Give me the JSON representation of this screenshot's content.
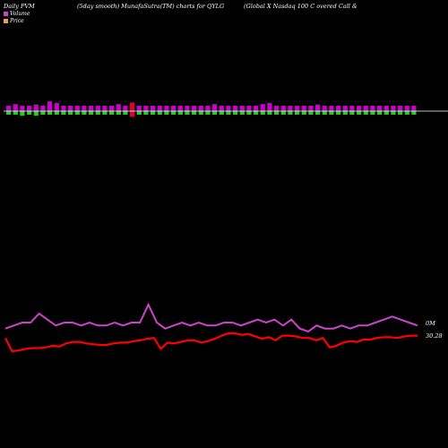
{
  "header": {
    "left": "Daily PVM",
    "middle": "(5day smooth) MunafaSutra(TM) charts for QYLG",
    "right": "(Global X  Nasdaq 100  C                  overed Call &"
  },
  "legend": [
    {
      "label": "Volume",
      "color": "#cc44cc"
    },
    {
      "label": "Price",
      "color": "#e8a060"
    }
  ],
  "labels": {
    "volume_value": "0M",
    "price_value": "30.28"
  },
  "colors": {
    "volume_up": "#cc00cc",
    "volume_down": "#22cc22",
    "volume_red": "#dd0033",
    "volume_line": "#cc44cc",
    "price_line": "#ff0000",
    "baseline": "#ffffff"
  },
  "chart_data": {
    "type": "line",
    "series": [
      {
        "name": "Volume",
        "values": [
          4,
          5,
          6,
          6,
          9,
          7,
          5,
          6,
          6,
          5,
          6,
          5,
          5,
          6,
          5,
          6,
          6,
          12,
          6,
          4,
          5,
          6,
          5,
          6,
          5,
          5,
          6,
          6,
          5,
          6,
          7,
          6,
          7,
          5,
          7,
          4,
          3,
          5,
          4,
          4,
          5,
          4,
          5,
          5,
          6,
          7,
          8,
          7,
          6,
          5
        ]
      },
      {
        "name": "Price",
        "values": [
          30.0,
          28.3,
          28.4,
          28.6,
          28.7,
          28.7,
          28.8,
          29.0,
          28.9,
          29.3,
          29.5,
          29.5,
          29.3,
          29.2,
          29.1,
          29.1,
          29.3,
          29.4,
          29.4,
          29.6,
          29.7,
          29.9,
          30.0,
          28.6,
          29.4,
          29.3,
          29.5,
          29.7,
          29.7,
          29.4,
          29.6,
          29.9,
          30.3,
          30.6,
          30.6,
          30.4,
          30.5,
          30.2,
          29.9,
          30.1,
          29.7,
          30.3,
          30.3,
          30.2,
          30.0,
          30.0,
          29.7,
          30.0,
          28.8,
          29.0,
          29.4,
          29.6,
          29.5,
          29.8,
          29.8,
          30.0,
          30.1,
          30.1,
          30.0,
          30.2,
          30.3,
          30.3
        ]
      }
    ],
    "bars": [
      {
        "v": 1,
        "dir": "up"
      },
      {
        "v": 1.3,
        "dir": "up"
      },
      {
        "v": 1,
        "dir": "up"
      },
      {
        "v": 1,
        "dir": "up"
      },
      {
        "v": 1.2,
        "dir": "up"
      },
      {
        "v": 1,
        "dir": "up"
      },
      {
        "v": 1.8,
        "dir": "up"
      },
      {
        "v": 1.5,
        "dir": "up"
      },
      {
        "v": 1,
        "dir": "up"
      },
      {
        "v": 1,
        "dir": "up"
      },
      {
        "v": 1,
        "dir": "up"
      },
      {
        "v": 1,
        "dir": "up"
      },
      {
        "v": 1,
        "dir": "up"
      },
      {
        "v": 1,
        "dir": "up"
      },
      {
        "v": 1,
        "dir": "up"
      },
      {
        "v": 1,
        "dir": "up"
      },
      {
        "v": 1.3,
        "dir": "up"
      },
      {
        "v": 1,
        "dir": "up"
      },
      {
        "v": 1.6,
        "dir": "red"
      },
      {
        "v": 1,
        "dir": "up"
      },
      {
        "v": 1,
        "dir": "up"
      },
      {
        "v": 1,
        "dir": "up"
      },
      {
        "v": 1,
        "dir": "up"
      },
      {
        "v": 1,
        "dir": "up"
      },
      {
        "v": 1,
        "dir": "up"
      },
      {
        "v": 1,
        "dir": "up"
      },
      {
        "v": 1,
        "dir": "up"
      },
      {
        "v": 1,
        "dir": "up"
      },
      {
        "v": 1,
        "dir": "up"
      },
      {
        "v": 1,
        "dir": "up"
      },
      {
        "v": 1.3,
        "dir": "up"
      },
      {
        "v": 1,
        "dir": "up"
      },
      {
        "v": 1,
        "dir": "up"
      },
      {
        "v": 1,
        "dir": "up"
      },
      {
        "v": 1,
        "dir": "up"
      },
      {
        "v": 1,
        "dir": "up"
      },
      {
        "v": 1,
        "dir": "up"
      },
      {
        "v": 1.3,
        "dir": "up"
      },
      {
        "v": 1.5,
        "dir": "up"
      },
      {
        "v": 1,
        "dir": "up"
      },
      {
        "v": 1,
        "dir": "up"
      },
      {
        "v": 1,
        "dir": "up"
      },
      {
        "v": 1,
        "dir": "up"
      },
      {
        "v": 1,
        "dir": "up"
      },
      {
        "v": 1,
        "dir": "up"
      },
      {
        "v": 1.2,
        "dir": "up"
      },
      {
        "v": 1,
        "dir": "up"
      },
      {
        "v": 1,
        "dir": "up"
      },
      {
        "v": 1,
        "dir": "up"
      },
      {
        "v": 1,
        "dir": "up"
      },
      {
        "v": 1,
        "dir": "up"
      },
      {
        "v": 1,
        "dir": "up"
      },
      {
        "v": 1,
        "dir": "up"
      },
      {
        "v": 1,
        "dir": "up"
      },
      {
        "v": 1,
        "dir": "up"
      },
      {
        "v": 1,
        "dir": "up"
      },
      {
        "v": 1,
        "dir": "up"
      },
      {
        "v": 1,
        "dir": "up"
      },
      {
        "v": 1,
        "dir": "up"
      },
      {
        "v": 1,
        "dir": "up"
      }
    ],
    "down_bars": [
      1,
      1,
      1.3,
      1,
      1.3,
      1,
      1,
      1,
      1,
      1,
      1,
      1,
      1,
      1,
      1,
      1,
      1,
      1,
      1.6,
      1,
      1,
      1,
      1,
      1,
      1,
      1,
      1,
      1,
      1,
      1,
      1,
      1,
      1,
      1,
      1,
      1,
      1,
      1,
      1,
      1,
      1,
      1,
      1,
      1,
      1,
      1,
      1,
      1,
      1,
      1,
      1,
      1,
      1,
      1,
      1,
      1,
      1,
      1,
      1,
      1
    ]
  }
}
